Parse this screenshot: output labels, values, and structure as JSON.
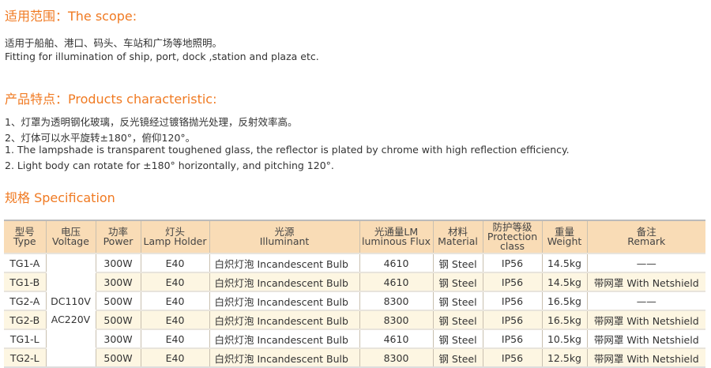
{
  "scope": {
    "title": "适用范围：The scope:",
    "cn": "适用于船舶、港口、码头、车站和广场等地照明。",
    "en": "Fitting for illumination of ship, port, dock ,station and plaza etc."
  },
  "features": {
    "title": "产品特点：Products characteristic:",
    "lines": [
      "1、灯罩为透明钢化玻璃，反光镜经过镀铬抛光处理，反射效率高。",
      "2、灯体可以水平旋转±180°，俯仰120°。",
      "1. The lampshade is transparent toughened glass, the reflector is plated by chrome with high reflection efficiency.",
      "2. Light body can rotate for ±180°   horizontally, and pitching 120°."
    ]
  },
  "spec": {
    "title": "规格 Specification",
    "headers": [
      [
        "型号",
        "Type"
      ],
      [
        "电压",
        "Voltage"
      ],
      [
        "功率",
        "Power"
      ],
      [
        "灯头",
        "Lamp Holder"
      ],
      [
        "光源",
        "Illuminant"
      ],
      [
        "光通量LM",
        "luminous Flux"
      ],
      [
        "材料",
        "Material"
      ],
      [
        "防护等级",
        "Protection class"
      ],
      [
        "重量",
        "Weight"
      ],
      [
        "备注",
        "Remark"
      ]
    ],
    "voltage": [
      "DC110V",
      "AC220V"
    ],
    "rows": [
      [
        "TG1-A",
        "300W",
        "E40",
        "白炽灯泡 Incandescent Bulb",
        "4610",
        "钢 Steel",
        "IP56",
        "14.5kg",
        "——"
      ],
      [
        "TG1-B",
        "300W",
        "E40",
        "白炽灯泡 Incandescent Bulb",
        "4610",
        "钢 Steel",
        "IP56",
        "14.5kg",
        "带网罩 With Netshield"
      ],
      [
        "TG2-A",
        "500W",
        "E40",
        "白炽灯泡 Incandescent Bulb",
        "8300",
        "钢 Steel",
        "IP56",
        "16.5kg",
        "——"
      ],
      [
        "TG2-B",
        "500W",
        "E40",
        "白炽灯泡 Incandescent Bulb",
        "8300",
        "钢 Steel",
        "IP56",
        "16.5kg",
        "带网罩 With Netshield"
      ],
      [
        "TG1-L",
        "300W",
        "E40",
        "白炽灯泡 Incandescent Bulb",
        "4610",
        "钢 Steel",
        "IP56",
        "10.5kg",
        "带网罩 With Netshield"
      ],
      [
        "TG2-L",
        "500W",
        "E40",
        "白炽灯泡 Incandescent Bulb",
        "8300",
        "钢 Steel",
        "IP56",
        "12.5kg",
        "带网罩 With Netshield"
      ]
    ]
  },
  "colors": {
    "accent": "#f07a22",
    "header_bg": "#f9dcb6",
    "alt_row": "#fdf6e2"
  }
}
